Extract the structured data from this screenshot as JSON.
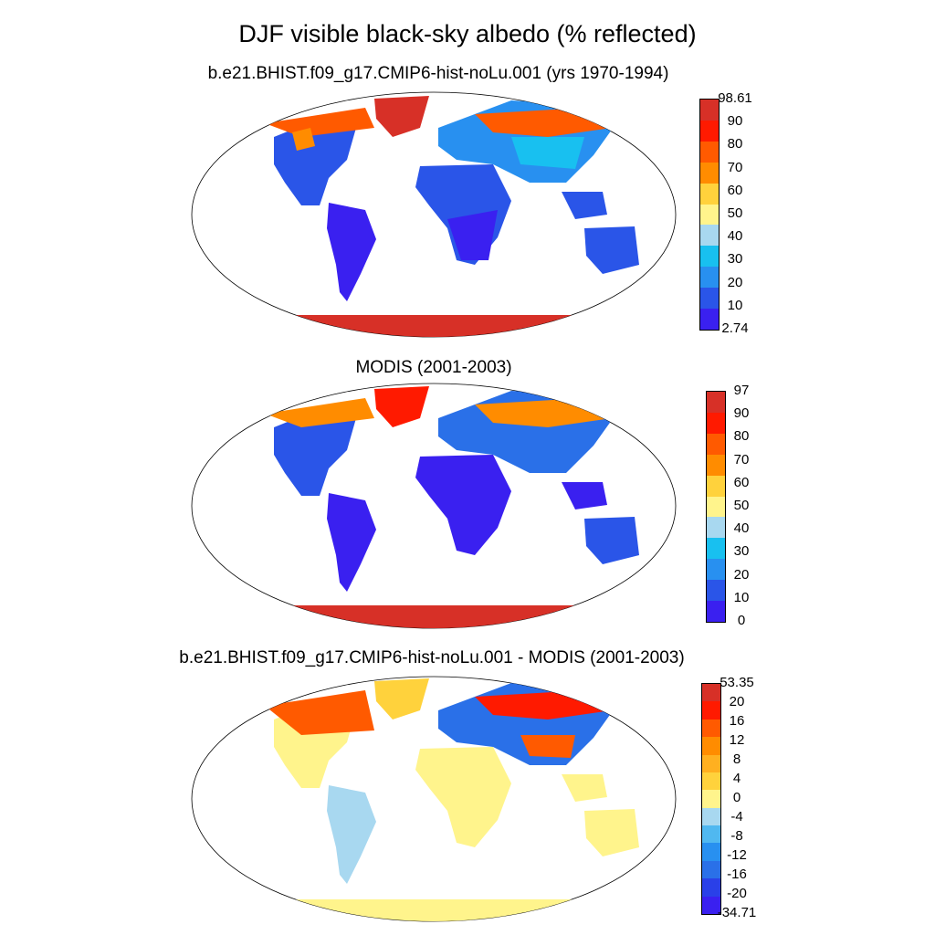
{
  "title": "DJF visible black-sky albedo (% reflected)",
  "panels": [
    {
      "subtitle": "b.e21.BHIST.f09_g17.CMIP6-hist-noLu.001 (yrs 1970-1994)",
      "colorbar": {
        "labels": [
          "98.61",
          "90",
          "80",
          "70",
          "60",
          "50",
          "40",
          "30",
          "20",
          "10",
          "2.74"
        ],
        "colors": [
          "#d73027",
          "#ff1a00",
          "#ff5a00",
          "#ff8c00",
          "#ffd23c",
          "#fff48c",
          "#a8d8f0",
          "#18c0f0",
          "#2890f0",
          "#2a55e8",
          "#3a20f0"
        ]
      }
    },
    {
      "subtitle": "MODIS (2001-2003)",
      "colorbar": {
        "labels": [
          "97",
          "90",
          "80",
          "70",
          "60",
          "50",
          "40",
          "30",
          "20",
          "10",
          "0"
        ],
        "colors": [
          "#d73027",
          "#ff1a00",
          "#ff5a00",
          "#ff8c00",
          "#ffd23c",
          "#fff48c",
          "#a8d8f0",
          "#18c0f0",
          "#2890f0",
          "#2a55e8",
          "#3a20f0"
        ]
      }
    },
    {
      "subtitle": "b.e21.BHIST.f09_g17.CMIP6-hist-noLu.001 - MODIS (2001-2003)",
      "colorbar": {
        "labels": [
          "53.35",
          "20",
          "16",
          "12",
          "8",
          "4",
          "0",
          "-4",
          "-8",
          "-12",
          "-16",
          "-20",
          "-34.71"
        ],
        "colors": [
          "#d73027",
          "#ff1a00",
          "#ff5a00",
          "#ff8c00",
          "#ffb020",
          "#ffd23c",
          "#fff48c",
          "#a8d8f0",
          "#50b8f0",
          "#2890f0",
          "#2a70e8",
          "#2a40e8",
          "#3a20f0"
        ]
      }
    }
  ]
}
